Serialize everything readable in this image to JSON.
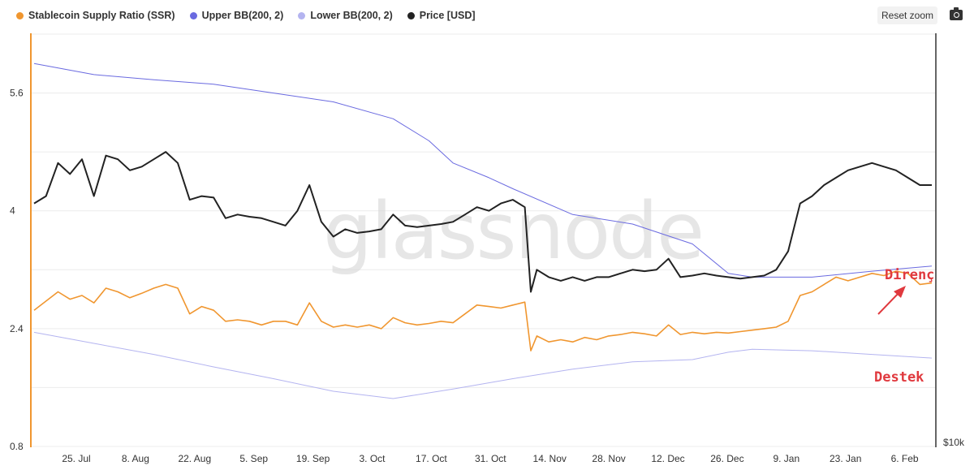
{
  "legend": [
    {
      "label": "Stablecoin Supply Ratio (SSR)",
      "color": "#f0962f"
    },
    {
      "label": "Upper BB(200, 2)",
      "color": "#6a6ae0"
    },
    {
      "label": "Lower BB(200, 2)",
      "color": "#b4b4f0"
    },
    {
      "label": "Price [USD]",
      "color": "#222222"
    }
  ],
  "toolbar": {
    "reset_label": "Reset zoom",
    "camera_icon": "camera-icon"
  },
  "watermark": "glassnode",
  "annotations": {
    "resistance": "Direnç",
    "support": "Destek"
  },
  "chart_data": {
    "type": "line",
    "x": [
      "25. Jul",
      "8. Aug",
      "22. Aug",
      "5. Sep",
      "19. Sep",
      "3. Oct",
      "17. Oct",
      "31. Oct",
      "14. Nov",
      "28. Nov",
      "12. Dec",
      "26. Dec",
      "9. Jan",
      "23. Jan",
      "6. Feb"
    ],
    "y_left_ticks": [
      "0.8",
      "2.4",
      "4",
      "5.6"
    ],
    "y_right_ticks": [
      "$10k"
    ],
    "y_left_range": [
      0.8,
      6.4
    ],
    "grid": true,
    "legend_position": "top-left",
    "series": [
      {
        "name": "Stablecoin Supply Ratio (SSR)",
        "color": "#f0962f",
        "points": [
          [
            0,
            2.65
          ],
          [
            2,
            2.9
          ],
          [
            3,
            2.8
          ],
          [
            4,
            2.85
          ],
          [
            5,
            2.75
          ],
          [
            6,
            2.95
          ],
          [
            7,
            2.9
          ],
          [
            8,
            2.82
          ],
          [
            9,
            2.88
          ],
          [
            10,
            2.95
          ],
          [
            11,
            3.0
          ],
          [
            12,
            2.95
          ],
          [
            13,
            2.6
          ],
          [
            14,
            2.7
          ],
          [
            15,
            2.65
          ],
          [
            16,
            2.5
          ],
          [
            17,
            2.52
          ],
          [
            18,
            2.5
          ],
          [
            19,
            2.45
          ],
          [
            20,
            2.5
          ],
          [
            21,
            2.5
          ],
          [
            22,
            2.45
          ],
          [
            23,
            2.75
          ],
          [
            24,
            2.5
          ],
          [
            25,
            2.42
          ],
          [
            26,
            2.45
          ],
          [
            27,
            2.42
          ],
          [
            28,
            2.45
          ],
          [
            29,
            2.4
          ],
          [
            30,
            2.55
          ],
          [
            31,
            2.48
          ],
          [
            32,
            2.45
          ],
          [
            33,
            2.47
          ],
          [
            34,
            2.5
          ],
          [
            35,
            2.48
          ],
          [
            36,
            2.6
          ],
          [
            37,
            2.72
          ],
          [
            38,
            2.7
          ],
          [
            39,
            2.68
          ],
          [
            40,
            2.72
          ],
          [
            41,
            2.76
          ],
          [
            41.5,
            2.1
          ],
          [
            42,
            2.3
          ],
          [
            43,
            2.22
          ],
          [
            44,
            2.25
          ],
          [
            45,
            2.22
          ],
          [
            46,
            2.28
          ],
          [
            47,
            2.25
          ],
          [
            48,
            2.3
          ],
          [
            49,
            2.32
          ],
          [
            50,
            2.35
          ],
          [
            51,
            2.33
          ],
          [
            52,
            2.3
          ],
          [
            53,
            2.45
          ],
          [
            54,
            2.32
          ],
          [
            55,
            2.35
          ],
          [
            56,
            2.33
          ],
          [
            57,
            2.35
          ],
          [
            58,
            2.34
          ],
          [
            59,
            2.36
          ],
          [
            60,
            2.38
          ],
          [
            61,
            2.4
          ],
          [
            62,
            2.42
          ],
          [
            63,
            2.5
          ],
          [
            64,
            2.85
          ],
          [
            65,
            2.9
          ],
          [
            66,
            3.0
          ],
          [
            67,
            3.1
          ],
          [
            68,
            3.05
          ],
          [
            69,
            3.1
          ],
          [
            70,
            3.15
          ],
          [
            71,
            3.12
          ],
          [
            72,
            3.18
          ],
          [
            73,
            3.15
          ],
          [
            74,
            3.0
          ],
          [
            75,
            3.02
          ]
        ]
      },
      {
        "name": "Upper BB(200, 2)",
        "color": "#6a6ae0",
        "points": [
          [
            0,
            6.0
          ],
          [
            5,
            5.85
          ],
          [
            10,
            5.78
          ],
          [
            15,
            5.72
          ],
          [
            20,
            5.6
          ],
          [
            25,
            5.48
          ],
          [
            30,
            5.25
          ],
          [
            33,
            4.95
          ],
          [
            35,
            4.65
          ],
          [
            38,
            4.45
          ],
          [
            40,
            4.3
          ],
          [
            45,
            3.95
          ],
          [
            50,
            3.82
          ],
          [
            55,
            3.55
          ],
          [
            58,
            3.15
          ],
          [
            60,
            3.1
          ],
          [
            65,
            3.1
          ],
          [
            70,
            3.18
          ],
          [
            75,
            3.25
          ]
        ]
      },
      {
        "name": "Lower BB(200, 2)",
        "color": "#b4b4f0",
        "points": [
          [
            0,
            2.35
          ],
          [
            5,
            2.2
          ],
          [
            10,
            2.05
          ],
          [
            15,
            1.88
          ],
          [
            20,
            1.72
          ],
          [
            25,
            1.55
          ],
          [
            30,
            1.45
          ],
          [
            35,
            1.58
          ],
          [
            40,
            1.72
          ],
          [
            45,
            1.85
          ],
          [
            50,
            1.95
          ],
          [
            55,
            1.98
          ],
          [
            58,
            2.08
          ],
          [
            60,
            2.12
          ],
          [
            65,
            2.1
          ],
          [
            70,
            2.05
          ],
          [
            75,
            2.0
          ]
        ]
      },
      {
        "name": "Price [USD]",
        "color": "#222222",
        "points": [
          [
            0,
            4.1
          ],
          [
            1,
            4.2
          ],
          [
            2,
            4.65
          ],
          [
            3,
            4.5
          ],
          [
            4,
            4.7
          ],
          [
            5,
            4.2
          ],
          [
            6,
            4.75
          ],
          [
            7,
            4.7
          ],
          [
            8,
            4.55
          ],
          [
            9,
            4.6
          ],
          [
            10,
            4.7
          ],
          [
            11,
            4.8
          ],
          [
            12,
            4.65
          ],
          [
            13,
            4.15
          ],
          [
            14,
            4.2
          ],
          [
            15,
            4.18
          ],
          [
            16,
            3.9
          ],
          [
            17,
            3.95
          ],
          [
            18,
            3.92
          ],
          [
            19,
            3.9
          ],
          [
            20,
            3.85
          ],
          [
            21,
            3.8
          ],
          [
            22,
            4.0
          ],
          [
            23,
            4.35
          ],
          [
            24,
            3.85
          ],
          [
            25,
            3.65
          ],
          [
            26,
            3.75
          ],
          [
            27,
            3.7
          ],
          [
            28,
            3.72
          ],
          [
            29,
            3.75
          ],
          [
            30,
            3.95
          ],
          [
            31,
            3.8
          ],
          [
            32,
            3.78
          ],
          [
            33,
            3.8
          ],
          [
            34,
            3.82
          ],
          [
            35,
            3.85
          ],
          [
            36,
            3.95
          ],
          [
            37,
            4.05
          ],
          [
            38,
            4.0
          ],
          [
            39,
            4.1
          ],
          [
            40,
            4.15
          ],
          [
            41,
            4.05
          ],
          [
            41.5,
            2.9
          ],
          [
            42,
            3.2
          ],
          [
            43,
            3.1
          ],
          [
            44,
            3.05
          ],
          [
            45,
            3.1
          ],
          [
            46,
            3.05
          ],
          [
            47,
            3.1
          ],
          [
            48,
            3.1
          ],
          [
            49,
            3.15
          ],
          [
            50,
            3.2
          ],
          [
            51,
            3.18
          ],
          [
            52,
            3.2
          ],
          [
            53,
            3.35
          ],
          [
            54,
            3.1
          ],
          [
            55,
            3.12
          ],
          [
            56,
            3.15
          ],
          [
            57,
            3.12
          ],
          [
            58,
            3.1
          ],
          [
            59,
            3.08
          ],
          [
            60,
            3.1
          ],
          [
            61,
            3.12
          ],
          [
            62,
            3.2
          ],
          [
            63,
            3.45
          ],
          [
            64,
            4.1
          ],
          [
            65,
            4.2
          ],
          [
            66,
            4.35
          ],
          [
            67,
            4.45
          ],
          [
            68,
            4.55
          ],
          [
            69,
            4.6
          ],
          [
            70,
            4.65
          ],
          [
            71,
            4.6
          ],
          [
            72,
            4.55
          ],
          [
            73,
            4.45
          ],
          [
            74,
            4.35
          ],
          [
            75,
            4.35
          ]
        ]
      }
    ]
  }
}
